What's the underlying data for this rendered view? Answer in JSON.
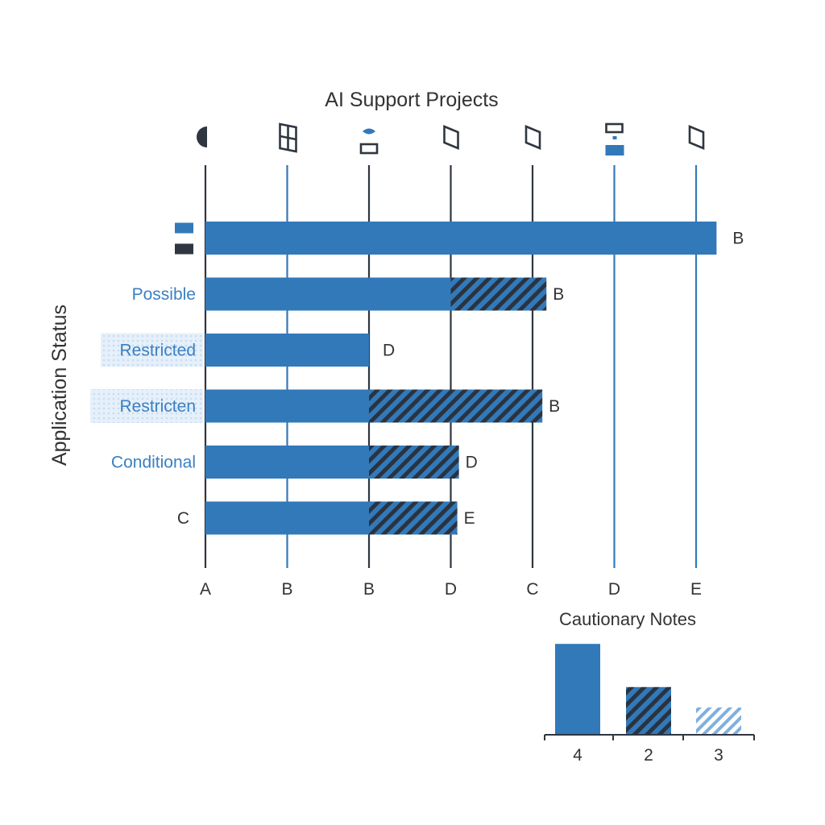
{
  "colors": {
    "blue": "#3279b9",
    "dark": "#2f3640",
    "label_blue": "#3a80c2",
    "light_blue": "#8fb9e2",
    "text": "#333333"
  },
  "chart_data": [
    {
      "type": "bar",
      "orientation": "horizontal",
      "title": "AI Support Projects",
      "ylabel": "Application Status",
      "xlabel": "",
      "x_ticks": [
        "A",
        "B",
        "B",
        "D",
        "C",
        "D",
        "E"
      ],
      "x_tick_styles": [
        "dark",
        "blue",
        "dark",
        "dark",
        "dark",
        "blue",
        "blue"
      ],
      "top_icons": [
        "half-circle-icon",
        "window-frame-icon",
        "eye-box-icon",
        "parallelogram-icon",
        "parallelogram-icon",
        "stacked-box-icon",
        "parallelogram-icon"
      ],
      "grid": true,
      "legend": {
        "placement": "left",
        "entries": [
          {
            "name": "",
            "color": "#3279b9",
            "style": "solid"
          },
          {
            "name": "",
            "color": "#2f3640",
            "style": "solid"
          }
        ]
      },
      "xlim": [
        0,
        6.25
      ],
      "categories": [
        "",
        "Possible",
        "Restricted",
        "Restricten",
        "Conditional",
        "C"
      ],
      "category_styles": [
        "legend",
        "blue",
        "boxed",
        "boxed",
        "blue",
        "dark"
      ],
      "series": [
        {
          "style": "solid",
          "values": [
            6.25,
            3.0,
            2.0,
            2.0,
            2.0,
            2.0
          ]
        },
        {
          "style": "hatched",
          "values": [
            0,
            1.17,
            0,
            2.12,
            1.1,
            1.08
          ]
        }
      ],
      "bar_labels": [
        "B",
        "B",
        "D",
        "B",
        "D",
        "E"
      ]
    },
    {
      "type": "bar",
      "title": "Cautionary Notes",
      "categories": [
        "4",
        "2",
        "3"
      ],
      "values": [
        4,
        2.1,
        1.2
      ],
      "styles": [
        "solid",
        "hatched",
        "light-hatched"
      ],
      "ylim": [
        0,
        4.2
      ]
    }
  ]
}
